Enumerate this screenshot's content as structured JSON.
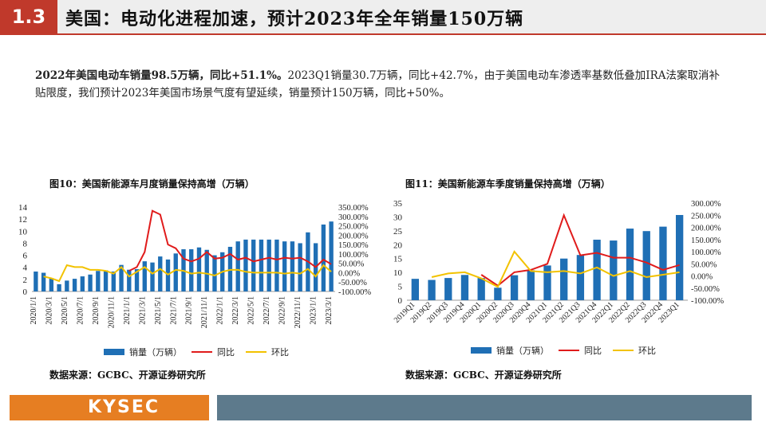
{
  "header": {
    "section_number": "1.3",
    "title": "美国：电动化进程加速，预计2023年全年销量150万辆"
  },
  "summary": {
    "bold_text": "2022年美国电动车销量98.5万辆，同比+51.1%。",
    "normal_text": "2023Q1销量30.7万辆，同比+42.7%，由于美国电动车渗透率基数低叠加IRA法案取消补贴限度，我们预计2023年美国市场景气度有望延续，销量预计150万辆，同比+50%。"
  },
  "figures": [
    {
      "title": "图10：美国新能源车月度销量保持高增（万辆）",
      "source": "数据来源：GCBC、开源证券研究所"
    },
    {
      "title": "图11：美国新能源车季度销量保持高增（万辆）",
      "source": "数据来源：GCBC、开源证券研究所"
    }
  ],
  "chart_data": [
    {
      "type": "bar",
      "title": "图10：美国新能源车月度销量保持高增（万辆）",
      "categories": [
        "2020/1/1",
        "2020/2/1",
        "2020/3/1",
        "2020/4/1",
        "2020/5/1",
        "2020/6/1",
        "2020/7/1",
        "2020/8/1",
        "2020/9/1",
        "2020/10/1",
        "2020/11/1",
        "2020/12/1",
        "2021/1/1",
        "2021/2/1",
        "2021/3/1",
        "2021/4/1",
        "2021/5/1",
        "2021/6/1",
        "2021/7/1",
        "2021/8/1",
        "2021/9/1",
        "2021/10/1",
        "2021/11/1",
        "2021/12/1",
        "2022/1/1",
        "2022/2/1",
        "2022/3/1",
        "2022/4/1",
        "2022/5/1",
        "2022/6/1",
        "2022/7/1",
        "2022/8/1",
        "2022/9/1",
        "2022/10/1",
        "2022/11/1",
        "2022/12/1",
        "2023/1/1",
        "2023/2/1",
        "2023/3/1"
      ],
      "tick_labels": [
        "2020/1/1",
        "2020/3/1",
        "2020/5/1",
        "2020/7/1",
        "2020/9/1",
        "2020/11/1",
        "2021/1/1",
        "2021/3/1",
        "2021/5/1",
        "2021/7/1",
        "2021/9/1",
        "2021/11/1",
        "2022/1/1",
        "2022/3/1",
        "2022/5/1",
        "2022/7/1",
        "2022/9/1",
        "2022/11/1",
        "2023/1/1",
        "2023/3/1"
      ],
      "series": [
        {
          "name": "销量（万辆）",
          "kind": "bar",
          "axis": "left",
          "color": "#1f6fb5",
          "values": [
            3.3,
            3.1,
            2.2,
            1.2,
            1.8,
            2.1,
            2.5,
            2.8,
            3.4,
            3.5,
            3.3,
            4.4,
            3.6,
            3.7,
            5.0,
            4.8,
            5.8,
            5.3,
            6.3,
            7.0,
            7.0,
            7.3,
            6.9,
            6.0,
            6.5,
            7.4,
            8.3,
            8.6,
            8.6,
            8.6,
            8.6,
            8.6,
            8.3,
            8.3,
            8.0,
            9.8,
            8.0,
            11.1,
            11.6
          ]
        },
        {
          "name": "同比",
          "kind": "line",
          "axis": "right",
          "color": "#e01b1b",
          "values": [
            null,
            null,
            null,
            null,
            null,
            null,
            null,
            null,
            null,
            null,
            null,
            null,
            10,
            30,
            110,
            330,
            310,
            150,
            130,
            75,
            60,
            75,
            110,
            75,
            80,
            100,
            70,
            80,
            60,
            70,
            80,
            70,
            80,
            75,
            80,
            60,
            30,
            70,
            45
          ]
        },
        {
          "name": "环比",
          "kind": "line",
          "axis": "right",
          "color": "#f2c200",
          "values": [
            null,
            -20,
            -30,
            -45,
            40,
            30,
            30,
            15,
            15,
            10,
            -5,
            30,
            -20,
            5,
            30,
            -5,
            20,
            -10,
            15,
            10,
            -5,
            0,
            -5,
            -15,
            5,
            15,
            15,
            5,
            0,
            0,
            0,
            0,
            -5,
            0,
            -5,
            20,
            -20,
            40,
            5
          ]
        }
      ],
      "ylim_left": [
        0,
        14
      ],
      "yticks_left": [
        0,
        2,
        4,
        6,
        8,
        10,
        12,
        14
      ],
      "ylim_right": [
        -100,
        350
      ],
      "yticks_right": [
        "-100.00%",
        "-50.00%",
        "0.00%",
        "50.00%",
        "100.00%",
        "150.00%",
        "200.00%",
        "250.00%",
        "300.00%",
        "350.00%"
      ],
      "legend": [
        "销量（万辆）",
        "同比",
        "环比"
      ],
      "legend_position": "bottom"
    },
    {
      "type": "bar",
      "title": "图11：美国新能源车季度销量保持高增（万辆）",
      "categories": [
        "2019Q1",
        "2019Q2",
        "2019Q3",
        "2019Q4",
        "2020Q1",
        "2020Q2",
        "2020Q3",
        "2020Q4",
        "2021Q1",
        "2021Q2",
        "2021Q3",
        "2021Q4",
        "2022Q1",
        "2022Q2",
        "2022Q3",
        "2022Q4",
        "2023Q1"
      ],
      "series": [
        {
          "name": "销量（万辆）",
          "kind": "bar",
          "axis": "left",
          "color": "#1f6fb5",
          "values": [
            7.7,
            7.3,
            8.0,
            9.1,
            8.0,
            4.5,
            9.0,
            10.8,
            12.5,
            15.0,
            16.3,
            21.8,
            21.5,
            25.8,
            24.9,
            26.5,
            30.7
          ]
        },
        {
          "name": "同比",
          "kind": "line",
          "axis": "right",
          "color": "#e01b1b",
          "values": [
            null,
            null,
            null,
            null,
            5,
            -40,
            15,
            25,
            50,
            250,
            85,
            95,
            75,
            75,
            55,
            25,
            45
          ]
        },
        {
          "name": "环比",
          "kind": "line",
          "axis": "right",
          "color": "#f2c200",
          "values": [
            null,
            -5,
            10,
            15,
            -10,
            -45,
            100,
            20,
            15,
            20,
            10,
            35,
            0,
            20,
            -5,
            5,
            15
          ]
        }
      ],
      "ylim_left": [
        0,
        35
      ],
      "yticks_left": [
        0,
        5,
        10,
        15,
        20,
        25,
        30,
        35
      ],
      "ylim_right": [
        -100,
        300
      ],
      "yticks_right": [
        "-100.00%",
        "-50.00%",
        "0.00%",
        "50.00%",
        "100.00%",
        "150.00%",
        "200.00%",
        "250.00%",
        "300.00%"
      ],
      "legend": [
        "销量（万辆）",
        "同比",
        "环比"
      ],
      "legend_position": "bottom"
    }
  ],
  "footer": {
    "logo_text": "KYSEC"
  }
}
